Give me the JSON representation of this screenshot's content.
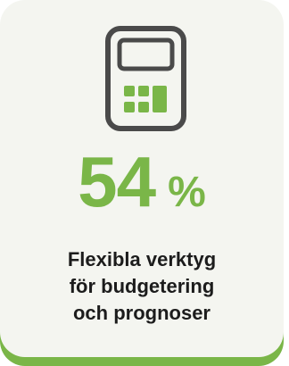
{
  "icon": "calculator-icon",
  "colors": {
    "accent": "#7ab648",
    "icon_outline": "#4a4a4a",
    "card_background": "#f4f5f0",
    "text": "#1c1c1c"
  },
  "stat": {
    "value": "54",
    "unit": "%"
  },
  "caption": {
    "lines": [
      "Flexibla verktyg",
      "för budgetering",
      "och prognoser"
    ]
  }
}
